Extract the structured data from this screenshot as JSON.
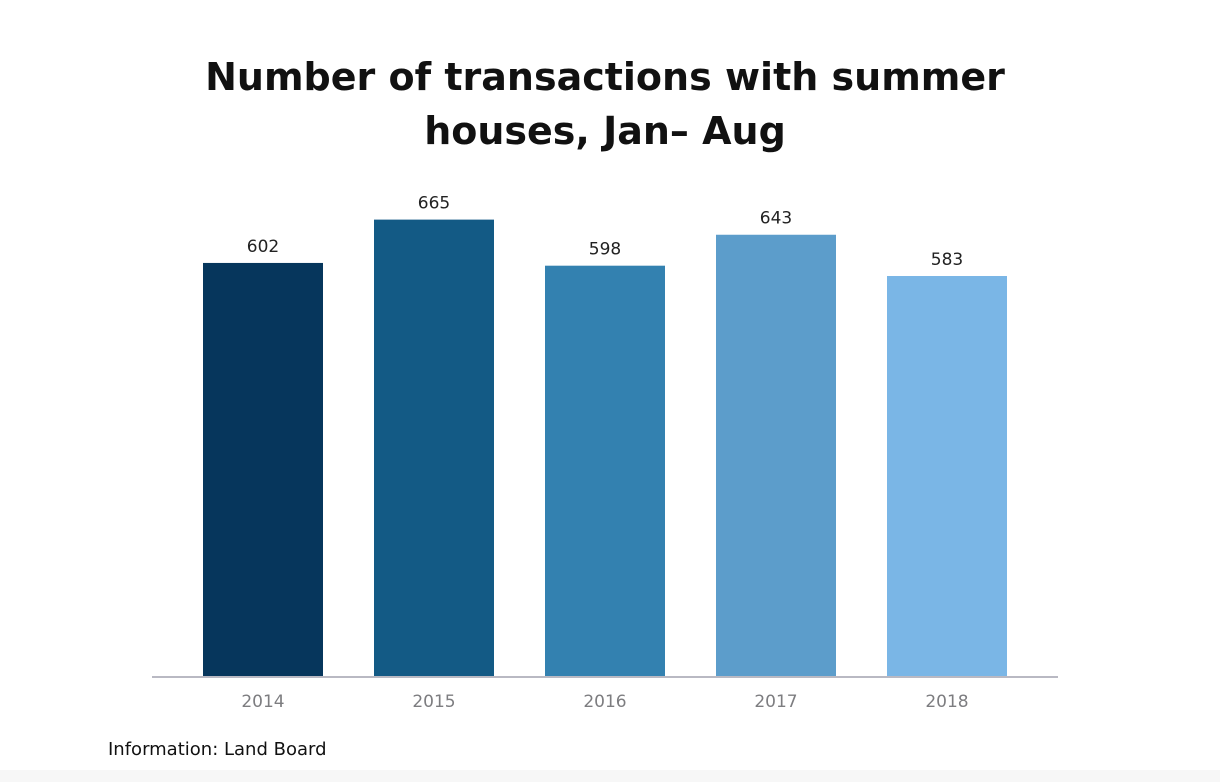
{
  "chart_data": {
    "type": "bar",
    "title_lines": [
      "Number of transactions with summer",
      "houses, Jan– Aug"
    ],
    "categories": [
      "2014",
      "2015",
      "2016",
      "2017",
      "2018"
    ],
    "values": [
      602,
      665,
      598,
      643,
      583
    ],
    "data_labels": [
      "602",
      "665",
      "598",
      "643",
      "583"
    ],
    "bar_colors": [
      "#06365c",
      "#135a85",
      "#3381b0",
      "#5c9dcb",
      "#7ab6e6"
    ],
    "axis_line_color": "#b9b9c3",
    "tick_label_color": "#7d7d80",
    "ylim": [
      0,
      700
    ],
    "y_axis_visible": false,
    "grid": false,
    "legend": "none"
  },
  "source": "Information: Land Board"
}
